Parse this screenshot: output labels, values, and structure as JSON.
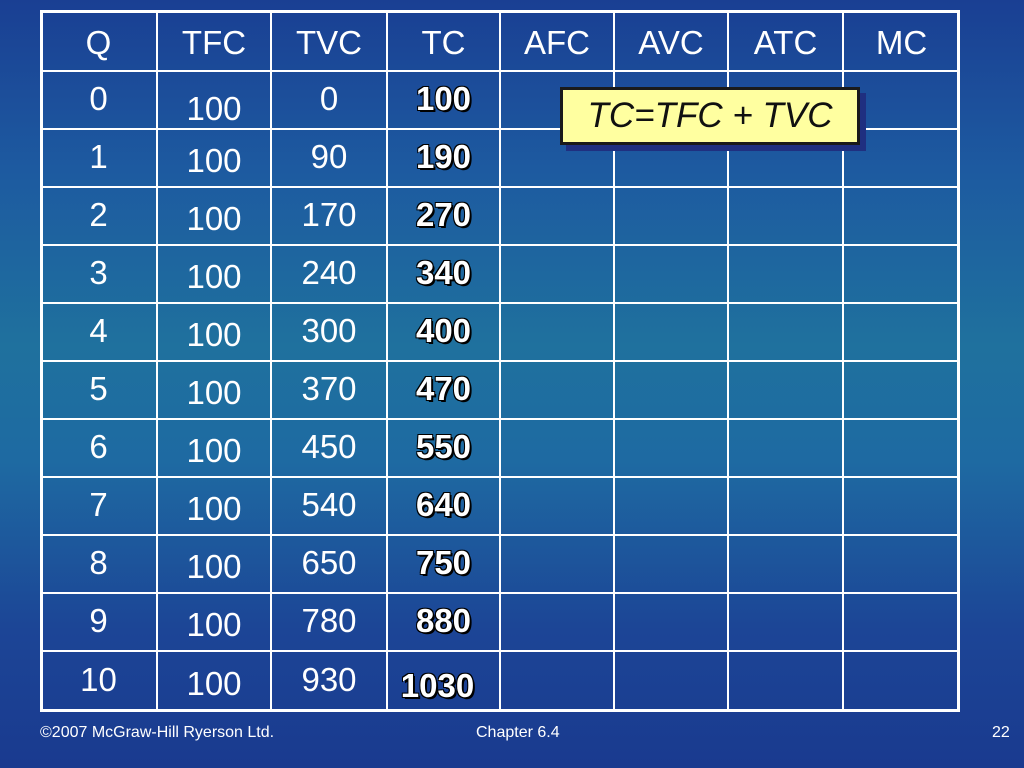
{
  "table": {
    "headers": [
      "Q",
      "TFC",
      "TVC",
      "TC",
      "AFC",
      "AVC",
      "ATC",
      "MC"
    ],
    "rows": [
      {
        "q": "0",
        "tfc": "100",
        "tvc": "0",
        "tc": "100"
      },
      {
        "q": "1",
        "tfc": "100",
        "tvc": "90",
        "tc": "190"
      },
      {
        "q": "2",
        "tfc": "100",
        "tvc": "170",
        "tc": "270"
      },
      {
        "q": "3",
        "tfc": "100",
        "tvc": "240",
        "tc": "340"
      },
      {
        "q": "4",
        "tfc": "100",
        "tvc": "300",
        "tc": "400"
      },
      {
        "q": "5",
        "tfc": "100",
        "tvc": "370",
        "tc": "470"
      },
      {
        "q": "6",
        "tfc": "100",
        "tvc": "450",
        "tc": "550"
      },
      {
        "q": "7",
        "tfc": "100",
        "tvc": "540",
        "tc": "640"
      },
      {
        "q": "8",
        "tfc": "100",
        "tvc": "650",
        "tc": "750"
      },
      {
        "q": "9",
        "tfc": "100",
        "tvc": "780",
        "tc": "880"
      },
      {
        "q": "10",
        "tfc": "100",
        "tvc": "930",
        "tc": "1030"
      }
    ]
  },
  "formula": "TC=TFC + TVC",
  "footer": {
    "copyright": "©2007 McGraw-Hill Ryerson Ltd.",
    "chapter": "Chapter 6.4",
    "page_number": "22"
  }
}
